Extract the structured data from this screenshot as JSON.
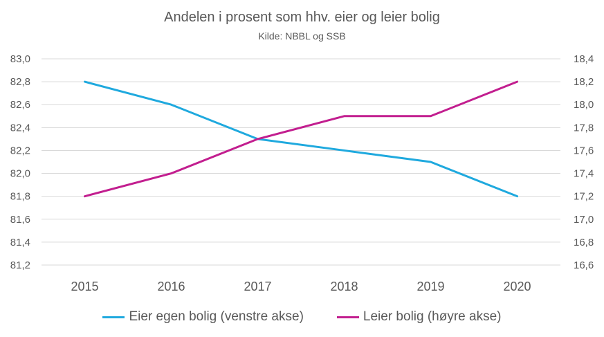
{
  "chart_data": {
    "type": "line",
    "title": "Andelen i prosent som hhv. eier og leier bolig",
    "subtitle": "Kilde:  NBBL og SSB",
    "categories": [
      "2015",
      "2016",
      "2017",
      "2018",
      "2019",
      "2020"
    ],
    "series": [
      {
        "name": "Eier egen bolig (venstre akse)",
        "axis": "left",
        "color": "#1FA9DE",
        "values": [
          82.8,
          82.6,
          82.3,
          82.2,
          82.1,
          81.8
        ]
      },
      {
        "name": "Leier bolig (høyre akse)",
        "axis": "right",
        "color": "#C21E8F",
        "values": [
          17.2,
          17.4,
          17.7,
          17.9,
          17.9,
          18.2
        ]
      }
    ],
    "y_left": {
      "range": [
        81.2,
        83.0
      ],
      "ticks": [
        "83,0",
        "82,8",
        "82,6",
        "82,4",
        "82,2",
        "82,0",
        "81,8",
        "81,6",
        "81,4",
        "81,2"
      ]
    },
    "y_right": {
      "range": [
        16.6,
        18.4
      ],
      "ticks": [
        "18,4",
        "18,2",
        "18,0",
        "17,8",
        "17,6",
        "17,4",
        "17,2",
        "17,0",
        "16,8",
        "16,6"
      ]
    },
    "grid": true,
    "legend_position": "bottom",
    "gridline_color": "#D9D9D9"
  }
}
